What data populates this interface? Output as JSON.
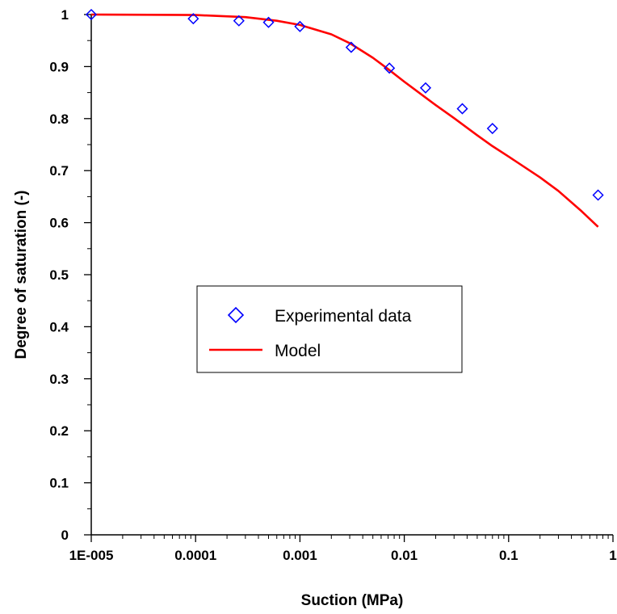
{
  "chart_data": {
    "type": "scatter",
    "title": "",
    "xlabel": "Suction (MPa)",
    "ylabel": "Degree of saturation (-)",
    "x_scale": "log",
    "xlim": [
      1e-05,
      1
    ],
    "ylim": [
      0,
      1
    ],
    "x_ticks": [
      1e-05,
      0.0001,
      0.001,
      0.01,
      0.1,
      1
    ],
    "x_tick_labels": [
      "1E-005",
      "0.0001",
      "0.001",
      "0.01",
      "0.1",
      "1"
    ],
    "y_ticks": [
      0,
      0.1,
      0.2,
      0.3,
      0.4,
      0.5,
      0.6,
      0.7,
      0.8,
      0.9,
      1
    ],
    "y_tick_labels": [
      "0",
      "0.1",
      "0.2",
      "0.3",
      "0.4",
      "0.5",
      "0.6",
      "0.7",
      "0.8",
      "0.9",
      "1"
    ],
    "grid": false,
    "legend_position": "center",
    "series": [
      {
        "name": "Experimental data",
        "kind": "scatter",
        "marker": "diamond-open",
        "color": "#0000ff",
        "x": [
          1e-05,
          9.5e-05,
          0.00026,
          0.0005,
          0.001,
          0.0031,
          0.0072,
          0.016,
          0.036,
          0.07,
          0.72
        ],
        "y": [
          1.0,
          0.992,
          0.988,
          0.985,
          0.977,
          0.937,
          0.897,
          0.859,
          0.819,
          0.781,
          0.653
        ]
      },
      {
        "name": "Model",
        "kind": "line",
        "color": "#ff0000",
        "x": [
          1e-05,
          0.0001,
          0.0003,
          0.0006,
          0.001,
          0.002,
          0.003,
          0.005,
          0.007,
          0.01,
          0.02,
          0.03,
          0.05,
          0.07,
          0.1,
          0.2,
          0.3,
          0.5,
          0.72
        ],
        "y": [
          1.0,
          0.999,
          0.995,
          0.988,
          0.98,
          0.962,
          0.945,
          0.917,
          0.895,
          0.871,
          0.826,
          0.801,
          0.768,
          0.747,
          0.727,
          0.687,
          0.661,
          0.622,
          0.592
        ]
      }
    ]
  }
}
